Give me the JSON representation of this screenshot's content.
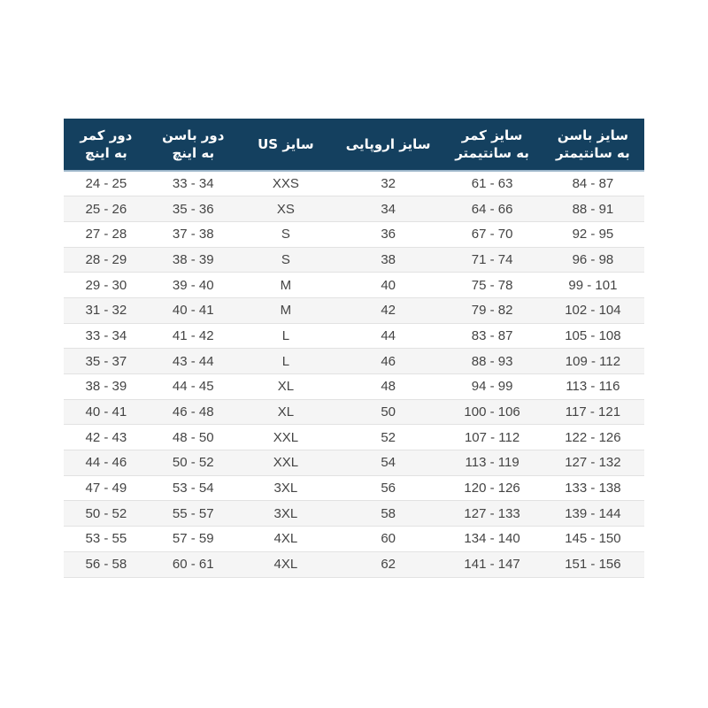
{
  "chart_data": {
    "type": "table",
    "direction": "rtl-content",
    "columns": [
      {
        "name": "waist-inches",
        "line1": "دور کمر",
        "line2": "به اینچ"
      },
      {
        "name": "hip-inches",
        "line1": "دور باسن",
        "line2": "به اینچ"
      },
      {
        "name": "us-size",
        "line1": "سایز US",
        "line2": ""
      },
      {
        "name": "eu-size",
        "line1": "سایز اروپایی",
        "line2": ""
      },
      {
        "name": "waist-cm",
        "line1": "سایز کمر",
        "line2": "به سانتیمتر"
      },
      {
        "name": "hip-cm",
        "line1": "سایز باسن",
        "line2": "به سانتیمتر"
      }
    ],
    "rows": [
      [
        "24 - 25",
        "33 - 34",
        "XXS",
        "32",
        "61 - 63",
        "84 - 87"
      ],
      [
        "25 - 26",
        "35 - 36",
        "XS",
        "34",
        "64 - 66",
        "88 - 91"
      ],
      [
        "27 - 28",
        "37 - 38",
        "S",
        "36",
        "67 - 70",
        "92 - 95"
      ],
      [
        "28 - 29",
        "38 - 39",
        "S",
        "38",
        "71 - 74",
        "96 - 98"
      ],
      [
        "29 - 30",
        "39 - 40",
        "M",
        "40",
        "75 - 78",
        "99 - 101"
      ],
      [
        "31 - 32",
        "40 - 41",
        "M",
        "42",
        "79 - 82",
        "102 - 104"
      ],
      [
        "33 - 34",
        "41 - 42",
        "L",
        "44",
        "83 - 87",
        "105 - 108"
      ],
      [
        "35 - 37",
        "43 - 44",
        "L",
        "46",
        "88 - 93",
        "109 - 112"
      ],
      [
        "38 - 39",
        "44 - 45",
        "XL",
        "48",
        "94 - 99",
        "113 - 116"
      ],
      [
        "40 - 41",
        "46 - 48",
        "XL",
        "50",
        "100 - 106",
        "117 - 121"
      ],
      [
        "42 - 43",
        "48 - 50",
        "XXL",
        "52",
        "107 - 112",
        "122 - 126"
      ],
      [
        "44 - 46",
        "50 - 52",
        "XXL",
        "54",
        "113 - 119",
        "127 - 132"
      ],
      [
        "47 - 49",
        "53 - 54",
        "3XL",
        "56",
        "120 - 126",
        "133 - 138"
      ],
      [
        "50 - 52",
        "55 - 57",
        "3XL",
        "58",
        "127 - 133",
        "139 - 144"
      ],
      [
        "53 - 55",
        "57 - 59",
        "4XL",
        "60",
        "134 - 140",
        "145 - 150"
      ],
      [
        "56 - 58",
        "60 - 61",
        "4XL",
        "62",
        "141 - 147",
        "151 - 156"
      ]
    ]
  },
  "theme": {
    "header_bg": "#14405f",
    "header_text": "#ffffff",
    "header_underline": "#9db6ca",
    "row_bg": "#ffffff",
    "row_alt_bg": "#f5f5f5",
    "row_border": "#e2e2e2",
    "cell_text": "#444444",
    "page_bg": "#ffffff"
  }
}
